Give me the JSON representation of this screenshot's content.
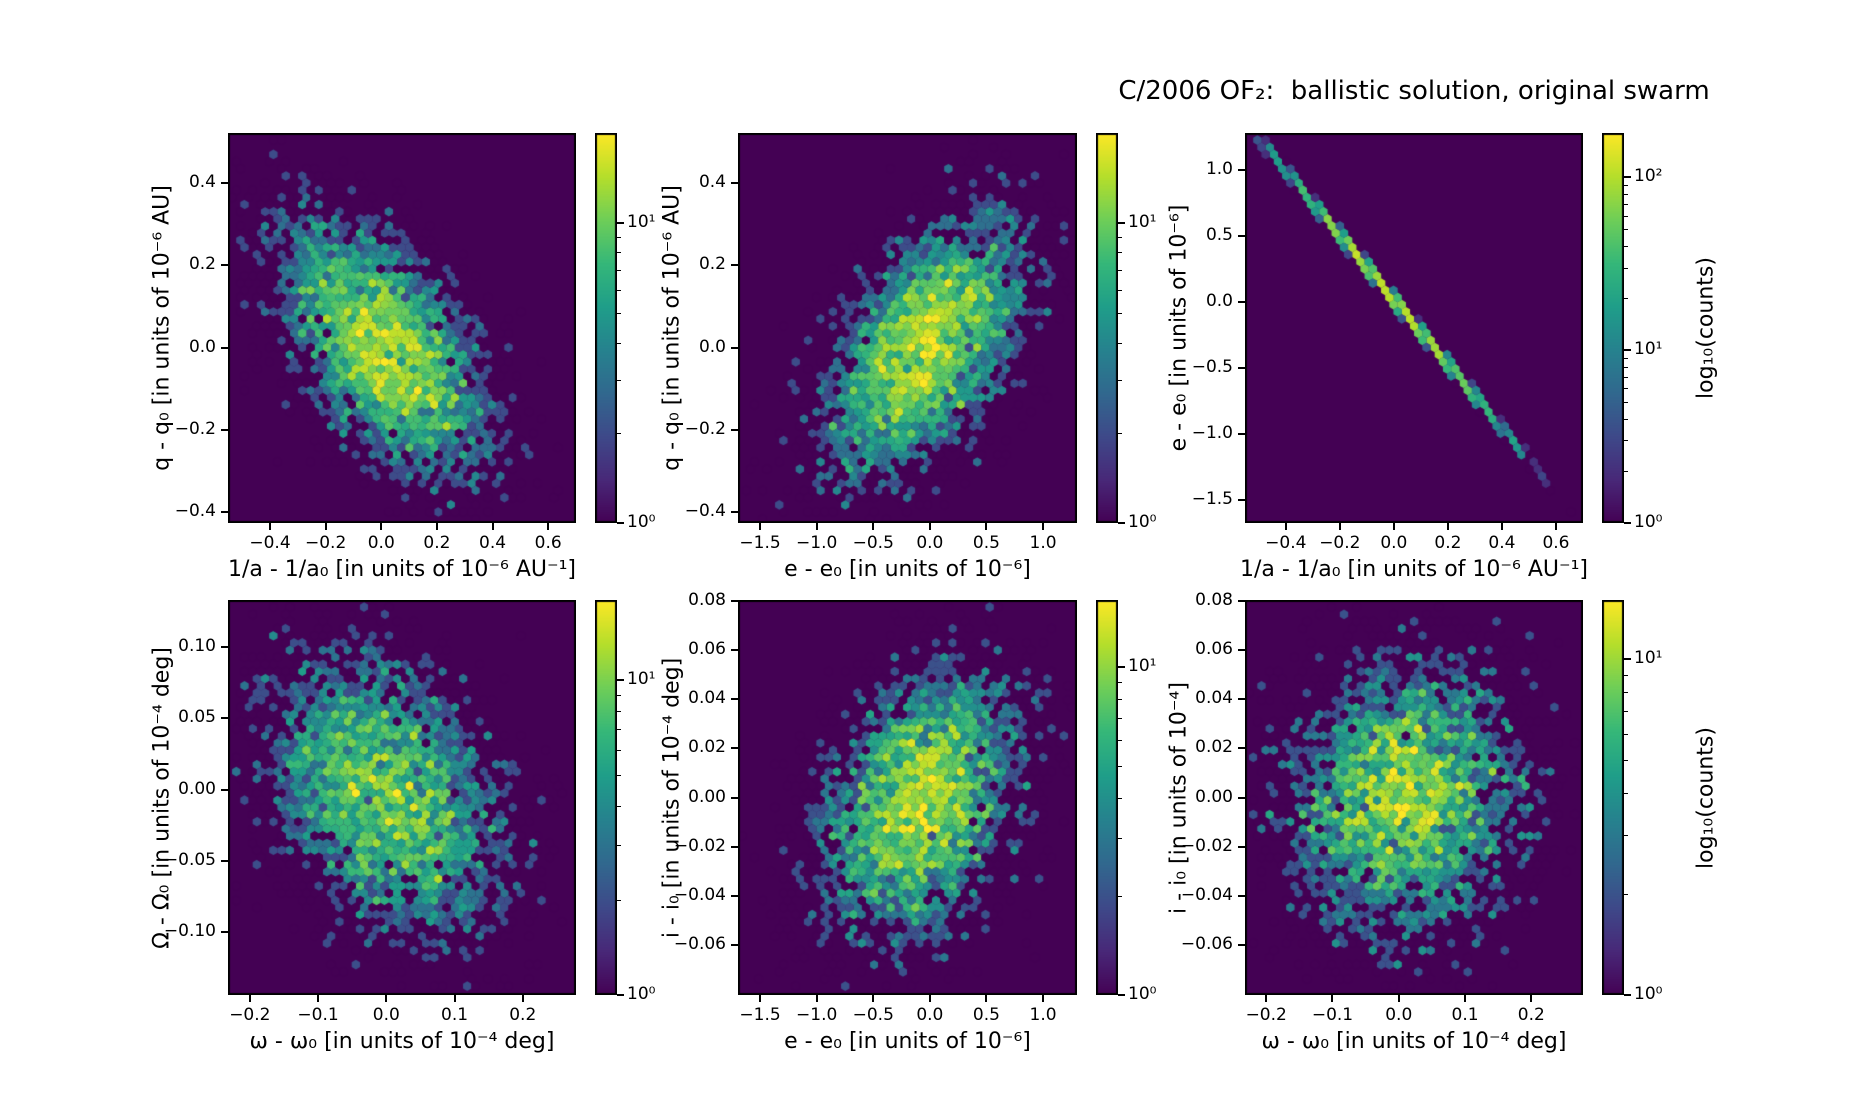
{
  "figure": {
    "title": "C/2006 OF₂:  ballistic solution, original swarm",
    "background_color": "#ffffff"
  },
  "chart_data": {
    "type": "heatmap",
    "subtype": "hexbin-grid",
    "colormap": "viridis",
    "colormap_hex": [
      "#440154",
      "#482878",
      "#3e4989",
      "#31688e",
      "#26828e",
      "#1f9e89",
      "#35b779",
      "#6ece58",
      "#b5de2b",
      "#fde725"
    ],
    "zero_count_background": "#440154",
    "color_scale": "log10(counts)",
    "layout": "2 rows x 3 columns, each panel with its own vertical colorbar",
    "panels": [
      {
        "name": "q-vs-ainv",
        "xlabel": "1/a - 1/a₀ [in units of 10⁻⁶ AU⁻¹]",
        "ylabel": "q - q₀ [in units of 10⁻⁶ AU]",
        "xlim": [
          -0.551,
          0.7
        ],
        "ylim": [
          -0.427,
          0.522
        ],
        "xticks": [
          {
            "value": -0.4,
            "label": "−0.4"
          },
          {
            "value": -0.2,
            "label": "−0.2"
          },
          {
            "value": 0.0,
            "label": "0.0"
          },
          {
            "value": 0.2,
            "label": "0.2"
          },
          {
            "value": 0.4,
            "label": "0.4"
          },
          {
            "value": 0.6,
            "label": "0.6"
          }
        ],
        "yticks": [
          {
            "value": 0.4,
            "label": "0.4"
          },
          {
            "value": 0.2,
            "label": "0.2"
          },
          {
            "value": 0.0,
            "label": "0.0"
          },
          {
            "value": -0.2,
            "label": "−0.2"
          },
          {
            "value": -0.4,
            "label": "−0.4"
          }
        ],
        "distribution": {
          "kind": "gaussian_cloud",
          "n_points": 4500,
          "center": [
            0.01,
            0.0
          ],
          "sigma": [
            0.19,
            0.16
          ],
          "correlation": -0.55,
          "seed": 101
        },
        "colorbar": {
          "vmax_counts": 20,
          "ticks": [
            {
              "value": 10,
              "label": "10¹"
            },
            {
              "value": 1,
              "label": "10⁰"
            }
          ],
          "label": null
        }
      },
      {
        "name": "q-vs-e",
        "xlabel": "e - e₀ [in units of 10⁻⁶]",
        "ylabel": "q - q₀ [in units of 10⁻⁶ AU]",
        "xlim": [
          -1.695,
          1.3
        ],
        "ylim": [
          -0.427,
          0.522
        ],
        "xticks": [
          {
            "value": -1.5,
            "label": "−1.5"
          },
          {
            "value": -1.0,
            "label": "−1.0"
          },
          {
            "value": -0.5,
            "label": "−0.5"
          },
          {
            "value": 0.0,
            "label": "0.0"
          },
          {
            "value": 0.5,
            "label": "0.5"
          },
          {
            "value": 1.0,
            "label": "1.0"
          }
        ],
        "yticks": [
          {
            "value": 0.4,
            "label": "0.4"
          },
          {
            "value": 0.2,
            "label": "0.2"
          },
          {
            "value": 0.0,
            "label": "0.0"
          },
          {
            "value": -0.2,
            "label": "−0.2"
          },
          {
            "value": -0.4,
            "label": "−0.4"
          }
        ],
        "distribution": {
          "kind": "gaussian_cloud",
          "n_points": 4500,
          "center": [
            -0.05,
            0.0
          ],
          "sigma": [
            0.45,
            0.16
          ],
          "correlation": 0.55,
          "seed": 102
        },
        "colorbar": {
          "vmax_counts": 20,
          "ticks": [
            {
              "value": 10,
              "label": "10¹"
            },
            {
              "value": 1,
              "label": "10⁰"
            }
          ],
          "label": null
        }
      },
      {
        "name": "e-vs-ainv",
        "xlabel": "1/a - 1/a₀ [in units of 10⁻⁶ AU⁻¹]",
        "ylabel": "e - e₀ [in units of 10⁻⁶]",
        "xlim": [
          -0.551,
          0.7
        ],
        "ylim": [
          -1.674,
          1.283
        ],
        "xticks": [
          {
            "value": -0.4,
            "label": "−0.4"
          },
          {
            "value": -0.2,
            "label": "−0.2"
          },
          {
            "value": 0.0,
            "label": "0.0"
          },
          {
            "value": 0.2,
            "label": "0.2"
          },
          {
            "value": 0.4,
            "label": "0.4"
          },
          {
            "value": 0.6,
            "label": "0.6"
          }
        ],
        "yticks": [
          {
            "value": 1.0,
            "label": "1.0"
          },
          {
            "value": 0.5,
            "label": "0.5"
          },
          {
            "value": 0.0,
            "label": "0.0"
          },
          {
            "value": -0.5,
            "label": "−0.5"
          },
          {
            "value": -1.0,
            "label": "−1.0"
          },
          {
            "value": -1.5,
            "label": "−1.5"
          }
        ],
        "distribution": {
          "kind": "correlation_line",
          "n_points": 3000,
          "x_sigma": 0.21,
          "slope": -2.45,
          "intercept": 0.02,
          "scatter": 0.012,
          "seed": 103
        },
        "colorbar": {
          "vmax_counts": 180,
          "ticks": [
            {
              "value": 100,
              "label": "10²"
            },
            {
              "value": 10,
              "label": "10¹"
            },
            {
              "value": 1,
              "label": "10⁰"
            }
          ],
          "label": "log₁₀(counts)"
        }
      },
      {
        "name": "Omega-vs-omega",
        "xlabel": "ω - ω₀ [in units of 10⁻⁴ deg]",
        "ylabel": "Ω - Ω₀ [in units of 10⁻⁴ deg]",
        "xlim": [
          -0.232,
          0.278
        ],
        "ylim": [
          -0.144,
          0.133
        ],
        "xticks": [
          {
            "value": -0.2,
            "label": "−0.2"
          },
          {
            "value": -0.1,
            "label": "−0.1"
          },
          {
            "value": 0.0,
            "label": "0.0"
          },
          {
            "value": 0.1,
            "label": "0.1"
          },
          {
            "value": 0.2,
            "label": "0.2"
          }
        ],
        "yticks": [
          {
            "value": 0.1,
            "label": "0.10"
          },
          {
            "value": 0.05,
            "label": "0.05"
          },
          {
            "value": 0.0,
            "label": "0.00"
          },
          {
            "value": -0.05,
            "label": "−0.05"
          },
          {
            "value": -0.1,
            "label": "−0.10"
          }
        ],
        "distribution": {
          "kind": "gaussian_cloud",
          "n_points": 4500,
          "center": [
            0.0,
            -0.005
          ],
          "sigma": [
            0.09,
            0.052
          ],
          "correlation": -0.35,
          "seed": 104
        },
        "colorbar": {
          "vmax_counts": 18,
          "ticks": [
            {
              "value": 10,
              "label": "10¹"
            },
            {
              "value": 1,
              "label": "10⁰"
            }
          ],
          "label": null
        }
      },
      {
        "name": "i-vs-e",
        "xlabel": "e - e₀ [in units of 10⁻⁶]",
        "ylabel": "i - i₀ [in units of 10⁻⁴ deg]",
        "xlim": [
          -1.695,
          1.3
        ],
        "ylim": [
          -0.0805,
          0.0805
        ],
        "xticks": [
          {
            "value": -1.5,
            "label": "−1.5"
          },
          {
            "value": -1.0,
            "label": "−1.0"
          },
          {
            "value": -0.5,
            "label": "−0.5"
          },
          {
            "value": 0.0,
            "label": "0.0"
          },
          {
            "value": 0.5,
            "label": "0.5"
          },
          {
            "value": 1.0,
            "label": "1.0"
          }
        ],
        "yticks": [
          {
            "value": 0.08,
            "label": "0.08"
          },
          {
            "value": 0.06,
            "label": "0.06"
          },
          {
            "value": 0.04,
            "label": "0.04"
          },
          {
            "value": 0.02,
            "label": "0.02"
          },
          {
            "value": 0.0,
            "label": "0.00"
          },
          {
            "value": -0.02,
            "label": "−0.02"
          },
          {
            "value": -0.04,
            "label": "−0.04"
          },
          {
            "value": -0.06,
            "label": "−0.06"
          }
        ],
        "distribution": {
          "kind": "gaussian_cloud",
          "n_points": 4200,
          "center": [
            -0.08,
            -0.002
          ],
          "sigma": [
            0.45,
            0.028
          ],
          "correlation": 0.3,
          "seed": 105
        },
        "colorbar": {
          "vmax_counts": 16,
          "ticks": [
            {
              "value": 10,
              "label": "10¹"
            },
            {
              "value": 1,
              "label": "10⁰"
            }
          ],
          "label": null
        }
      },
      {
        "name": "i-vs-omega",
        "xlabel": "ω - ω₀ [in units of 10⁻⁴ deg]",
        "ylabel": "i - i₀ [in units of 10⁻⁴]",
        "xlim": [
          -0.232,
          0.278
        ],
        "ylim": [
          -0.0805,
          0.0805
        ],
        "xticks": [
          {
            "value": -0.2,
            "label": "−0.2"
          },
          {
            "value": -0.1,
            "label": "−0.1"
          },
          {
            "value": 0.0,
            "label": "0.0"
          },
          {
            "value": 0.1,
            "label": "0.1"
          },
          {
            "value": 0.2,
            "label": "0.2"
          }
        ],
        "yticks": [
          {
            "value": 0.08,
            "label": "0.08"
          },
          {
            "value": 0.06,
            "label": "0.06"
          },
          {
            "value": 0.04,
            "label": "0.04"
          },
          {
            "value": 0.02,
            "label": "0.02"
          },
          {
            "value": 0.0,
            "label": "0.00"
          },
          {
            "value": -0.02,
            "label": "−0.02"
          },
          {
            "value": -0.04,
            "label": "−0.04"
          },
          {
            "value": -0.06,
            "label": "−0.06"
          }
        ],
        "distribution": {
          "kind": "gaussian_cloud",
          "n_points": 4500,
          "center": [
            0.01,
            0.0
          ],
          "sigma": [
            0.09,
            0.029
          ],
          "correlation": 0.05,
          "seed": 106
        },
        "colorbar": {
          "vmax_counts": 15,
          "ticks": [
            {
              "value": 10,
              "label": "10¹"
            },
            {
              "value": 1,
              "label": "10⁰"
            }
          ],
          "label": "log₁₀(counts)"
        }
      }
    ]
  }
}
